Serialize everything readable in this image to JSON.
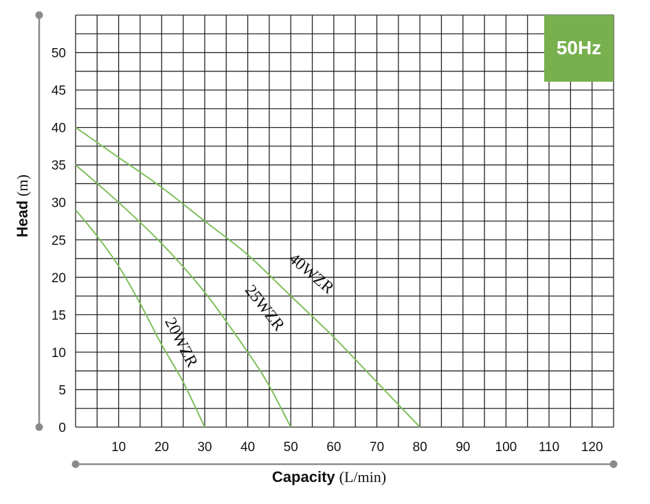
{
  "chart_data": {
    "type": "line",
    "badge": "50Hz",
    "xlabel_bold": "Capacity",
    "xlabel_unit": "(L/min)",
    "ylabel_bold": "Head",
    "ylabel_unit": "(m)",
    "xlim": [
      0,
      125
    ],
    "ylim": [
      0,
      55
    ],
    "x_ticks": [
      10,
      20,
      30,
      40,
      50,
      60,
      70,
      80,
      90,
      100,
      110,
      120
    ],
    "y_ticks": [
      0,
      5,
      10,
      15,
      20,
      25,
      30,
      35,
      40,
      45,
      50
    ],
    "grid": true,
    "line_color": "#7cbf5a",
    "badge_color": "#78b04e",
    "series": [
      {
        "name": "20WZR",
        "x": [
          0,
          5,
          10,
          15,
          20,
          25,
          30
        ],
        "y": [
          29,
          25.5,
          21.5,
          16.5,
          11,
          6,
          0
        ]
      },
      {
        "name": "25WZR",
        "x": [
          0,
          10,
          20,
          30,
          40,
          45,
          50
        ],
        "y": [
          35,
          30,
          24.5,
          18,
          10,
          5.5,
          0
        ]
      },
      {
        "name": "40WZR",
        "x": [
          0,
          10,
          20,
          30,
          40,
          50,
          60,
          70,
          80
        ],
        "y": [
          40,
          36,
          32,
          27.5,
          23,
          17.5,
          12,
          6,
          0
        ]
      }
    ]
  }
}
